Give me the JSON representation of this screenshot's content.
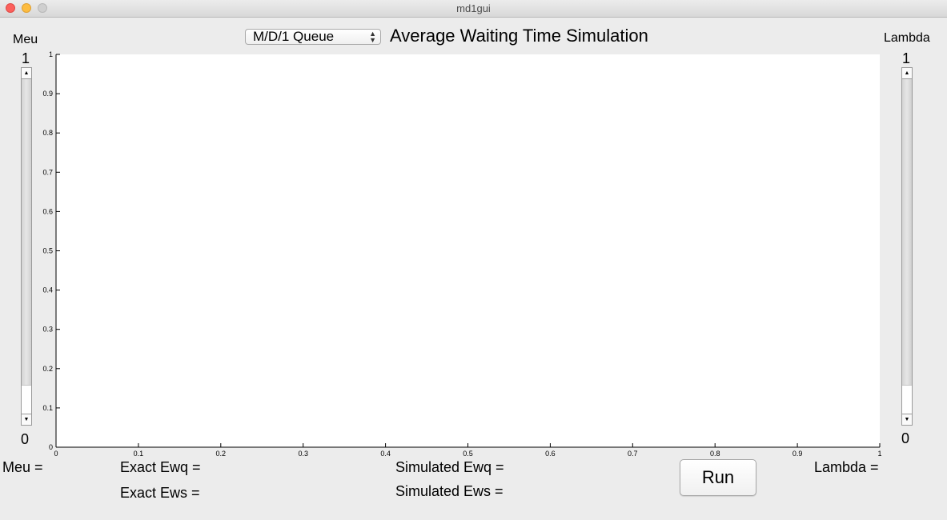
{
  "window": {
    "title": "md1gui"
  },
  "queue_select": {
    "selected": "M/D/1 Queue"
  },
  "plot_title": "Average Waiting Time Simulation",
  "meu_slider": {
    "label": "Meu",
    "max_label": "1",
    "min_label": "0",
    "value": 0
  },
  "lambda_slider": {
    "label": "Lambda",
    "max_label": "1",
    "min_label": "0",
    "value": 0
  },
  "readouts": {
    "meu": "Meu =",
    "lambda": "Lambda =",
    "exact_ewq": "Exact Ewq =",
    "exact_ews": "Exact Ews =",
    "simulated_ewq": "Simulated Ewq =",
    "simulated_ews": "Simulated Ews ="
  },
  "run_button": {
    "label": "Run"
  },
  "chart_data": {
    "type": "line",
    "series": [],
    "xlim": [
      0,
      1
    ],
    "ylim": [
      0,
      1
    ],
    "x_ticks": [
      "0",
      "0.1",
      "0.2",
      "0.3",
      "0.4",
      "0.5",
      "0.6",
      "0.7",
      "0.8",
      "0.9",
      "1"
    ],
    "y_ticks": [
      "0",
      "0.1",
      "0.2",
      "0.3",
      "0.4",
      "0.5",
      "0.6",
      "0.7",
      "0.8",
      "0.9",
      "1"
    ],
    "grid": false
  }
}
